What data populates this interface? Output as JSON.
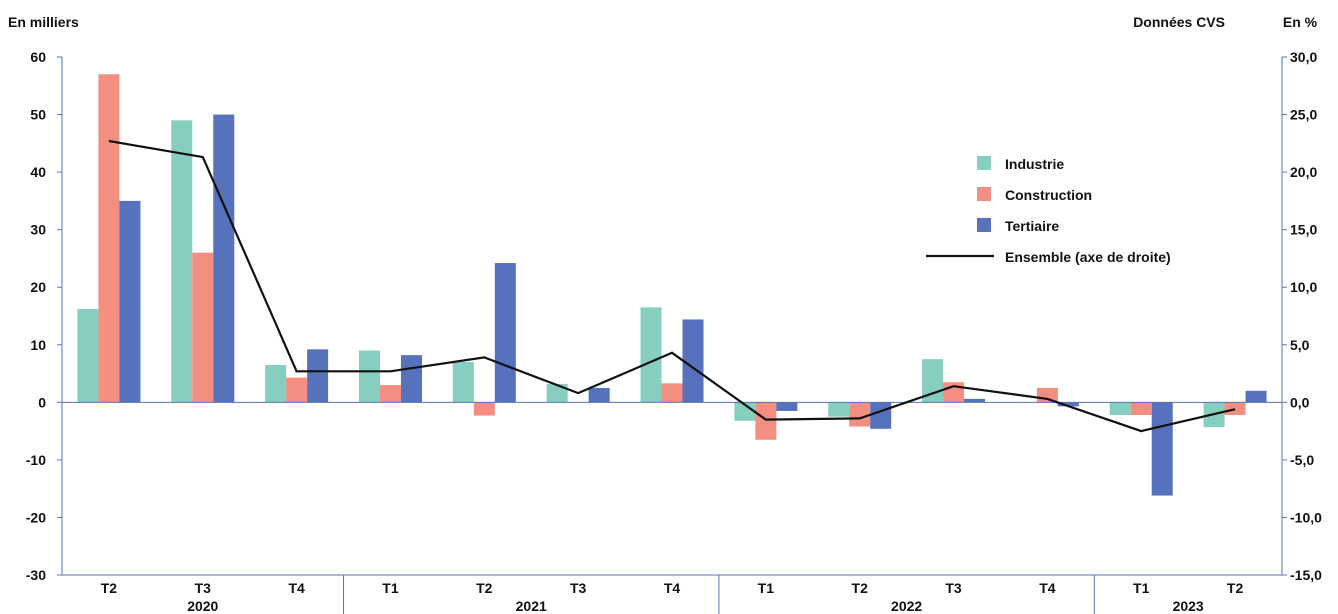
{
  "chart_data": {
    "type": "bar",
    "ylabel_left": "En milliers",
    "ylabel_right": "En %",
    "note": "Données CVS",
    "y_left_range": [
      -30,
      60
    ],
    "y_left_ticks": [
      "-30",
      "-20",
      "-10",
      "0",
      "10",
      "20",
      "30",
      "40",
      "50",
      "60"
    ],
    "y_right_range": [
      -15,
      30
    ],
    "y_right_ticks": [
      "-15,0",
      "-10,0",
      "-5,0",
      "0,0",
      "5,0",
      "10,0",
      "15,0",
      "20,0",
      "25,0",
      "30,0"
    ],
    "categories": [
      "T2",
      "T3",
      "T4",
      "T1",
      "T2",
      "T3",
      "T4",
      "T1",
      "T2",
      "T3",
      "T4",
      "T1",
      "T2"
    ],
    "years": [
      {
        "label": "2020",
        "count": 3
      },
      {
        "label": "2021",
        "count": 4
      },
      {
        "label": "2022",
        "count": 4
      },
      {
        "label": "2023",
        "count": 2
      }
    ],
    "series": [
      {
        "name": "Industrie",
        "color": "#86cfc0",
        "values": [
          16.2,
          49.0,
          6.5,
          9.0,
          7.0,
          3.2,
          16.5,
          -3.2,
          -2.5,
          7.5,
          0.0,
          -2.2,
          -4.3
        ]
      },
      {
        "name": "Construction",
        "color": "#f48e80",
        "values": [
          57.0,
          26.0,
          4.3,
          3.0,
          -2.3,
          0.0,
          3.3,
          -6.5,
          -4.2,
          3.5,
          2.5,
          -2.2,
          -2.2
        ]
      },
      {
        "name": "Tertiaire",
        "color": "#5672bd",
        "values": [
          35.0,
          50.0,
          9.2,
          8.2,
          24.2,
          2.5,
          14.4,
          -1.5,
          -4.6,
          0.6,
          -0.7,
          -16.2,
          2.0
        ]
      }
    ],
    "line_series": {
      "name": "Ensemble (axe de droite)",
      "color": "#111111",
      "axis": "right",
      "values": [
        22.7,
        21.3,
        2.7,
        2.7,
        3.9,
        0.8,
        4.3,
        -1.5,
        -1.4,
        1.4,
        0.3,
        -2.5,
        -0.6
      ]
    },
    "legend_position": "right"
  }
}
